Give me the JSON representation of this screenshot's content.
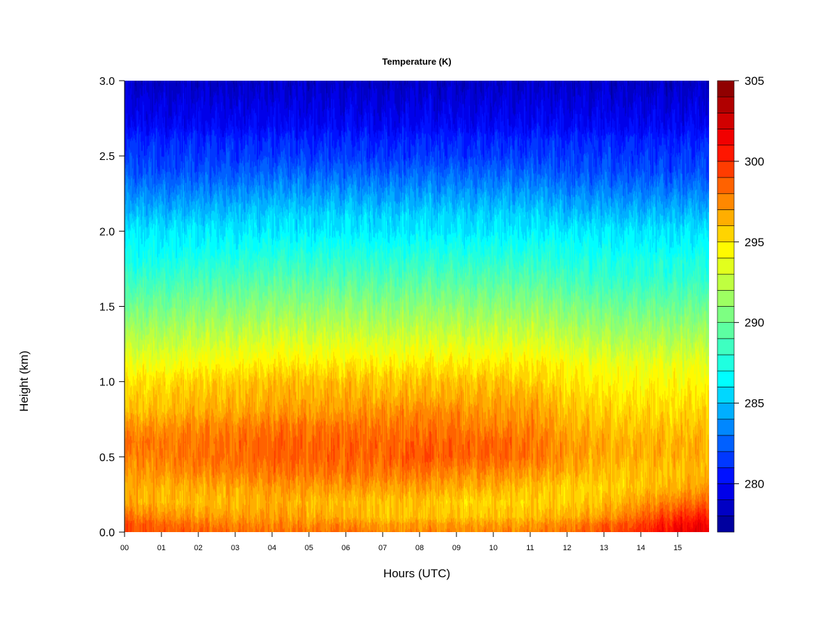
{
  "chart_data": {
    "type": "heatmap",
    "title": "Temperature (K)",
    "xlabel": "Hours (UTC)",
    "ylabel": "Height (km)",
    "xlim": [
      0,
      15.85
    ],
    "ylim": [
      0.0,
      3.0
    ],
    "x_ticks": [
      "00",
      "01",
      "02",
      "03",
      "04",
      "05",
      "06",
      "07",
      "08",
      "09",
      "10",
      "11",
      "12",
      "13",
      "14",
      "15"
    ],
    "y_ticks": [
      "0.0",
      "0.5",
      "1.0",
      "1.5",
      "2.0",
      "2.5",
      "3.0"
    ],
    "colorbar": {
      "min": 277,
      "max": 305,
      "step": 1,
      "ticks": [
        "280",
        "285",
        "290",
        "295",
        "300",
        "305"
      ],
      "tick_values": [
        280,
        285,
        290,
        295,
        300,
        305
      ]
    },
    "temperature_profile": {
      "height_km": [
        0.0,
        0.05,
        0.1,
        0.2,
        0.3,
        0.4,
        0.5,
        0.6,
        0.7,
        0.8,
        0.9,
        1.0,
        1.1,
        1.2,
        1.3,
        1.4,
        1.5,
        1.6,
        1.7,
        1.8,
        1.9,
        2.0,
        2.1,
        2.2,
        2.3,
        2.4,
        2.5,
        2.6,
        2.7,
        2.8,
        2.9,
        3.0
      ],
      "hours": [
        0,
        2,
        4,
        6,
        7,
        8,
        9,
        10,
        11,
        12,
        13,
        14,
        15,
        15.85
      ],
      "values_K": [
        [
          299,
          299,
          298,
          296.5,
          296.5,
          297,
          297.5,
          298,
          297,
          296,
          295.5,
          295,
          294,
          293,
          292,
          291,
          290,
          289,
          288,
          287,
          286.5,
          286,
          285,
          284,
          283,
          282,
          281.5,
          281,
          280,
          279.5,
          279,
          278.5
        ],
        [
          298.5,
          298,
          297,
          296,
          296.5,
          297.5,
          298,
          298,
          297.5,
          296.5,
          296,
          295.5,
          294.5,
          293.5,
          292.5,
          291.5,
          290.5,
          289.5,
          288.5,
          287.5,
          286.5,
          286,
          285,
          284,
          283,
          282,
          281.5,
          281,
          280,
          279.5,
          279,
          278.5
        ],
        [
          298,
          297.5,
          297,
          296.5,
          297,
          298,
          298.5,
          298.5,
          298,
          297,
          296.5,
          296,
          295,
          294,
          293,
          292,
          291,
          290,
          289,
          288,
          287,
          286,
          285.5,
          284.5,
          283.5,
          282.5,
          281.5,
          281,
          280,
          279.5,
          279,
          278.5
        ],
        [
          298,
          297.5,
          296.5,
          296,
          297,
          298,
          298.5,
          298.5,
          298,
          297,
          296.5,
          296,
          295,
          294,
          293,
          292,
          291,
          290,
          289,
          288,
          287,
          286,
          285.5,
          284.5,
          283.5,
          282.5,
          281.5,
          281,
          280,
          279.5,
          279,
          278.5
        ],
        [
          297.5,
          297,
          296,
          296,
          297,
          298,
          298.5,
          298.5,
          298,
          297.5,
          296.5,
          296,
          295,
          294,
          293,
          292,
          291,
          290,
          289,
          288,
          287,
          286,
          285.5,
          284.5,
          283.5,
          282.5,
          281.5,
          281,
          280,
          279.5,
          279,
          278.5
        ],
        [
          297.5,
          297,
          296,
          296,
          297,
          298,
          299,
          298.5,
          298,
          297.5,
          296.5,
          296,
          295,
          294,
          293,
          292,
          291,
          290,
          289,
          288,
          287,
          286,
          285.5,
          284.5,
          283.5,
          282.5,
          281.5,
          281,
          280,
          279.5,
          279,
          278.5
        ],
        [
          297.5,
          297,
          296,
          295.5,
          296.5,
          297.5,
          298.5,
          298.5,
          298,
          297.5,
          296.5,
          296,
          295,
          294,
          293,
          292,
          291,
          290,
          289,
          288,
          287,
          286,
          285.5,
          284.5,
          283.5,
          282.5,
          281.5,
          281,
          280,
          279.5,
          279,
          278.5
        ],
        [
          297.5,
          297,
          296,
          295.5,
          296.5,
          297.5,
          298.5,
          298.5,
          297.5,
          297,
          296.5,
          296,
          295,
          294,
          293,
          292,
          291,
          290,
          289,
          288,
          287,
          286,
          285.5,
          284.5,
          283.5,
          282.5,
          281.5,
          281,
          280,
          279.5,
          279,
          278.5
        ],
        [
          297.5,
          297,
          296,
          295.5,
          296,
          297,
          298,
          298,
          297.5,
          297,
          296.5,
          295.5,
          295,
          294,
          293,
          292,
          291,
          290,
          289,
          288,
          287,
          286,
          285.5,
          284.5,
          283.5,
          282.5,
          281.5,
          281,
          280,
          279.5,
          279,
          278.5
        ],
        [
          298,
          297.5,
          296.5,
          295.5,
          295.5,
          296.5,
          297,
          297,
          296.5,
          296,
          295.5,
          295,
          294.5,
          293.5,
          292.5,
          291.5,
          290.5,
          289.5,
          288.5,
          287.5,
          287,
          286,
          285,
          284,
          283,
          282,
          281.5,
          281,
          280,
          279.5,
          279,
          278.5
        ],
        [
          299,
          298.5,
          297,
          296,
          295.5,
          296,
          296.5,
          296.5,
          296,
          295.5,
          295,
          294.5,
          294,
          293,
          292,
          291,
          290,
          289,
          288,
          287.5,
          286.5,
          286,
          285,
          284,
          283,
          282,
          281.5,
          281,
          280,
          279.5,
          279,
          278.5
        ],
        [
          300,
          299.5,
          298.5,
          297,
          296,
          296,
          296.5,
          296.5,
          296,
          295.5,
          295,
          294.5,
          294,
          293,
          292,
          291,
          290,
          289,
          288,
          287.5,
          286.5,
          286,
          285,
          284,
          283,
          282,
          281.5,
          281,
          280,
          279.5,
          279,
          278.5
        ],
        [
          301.5,
          301,
          300,
          298,
          296.5,
          296,
          296.5,
          296.5,
          296,
          295.5,
          295,
          294.5,
          294,
          293,
          292,
          291,
          290,
          289,
          288,
          287.5,
          286.5,
          286,
          285,
          284,
          283,
          282,
          281.5,
          281,
          280,
          279.5,
          279,
          278.5
        ],
        [
          302,
          301.5,
          300.5,
          298.5,
          297,
          296.5,
          296.5,
          296.5,
          296,
          295.5,
          295,
          294.5,
          294,
          293,
          292,
          291,
          290,
          289,
          288,
          287.5,
          286.5,
          286,
          285,
          284,
          283,
          282,
          281.5,
          281,
          280,
          279.5,
          279,
          278.5
        ]
      ]
    }
  }
}
